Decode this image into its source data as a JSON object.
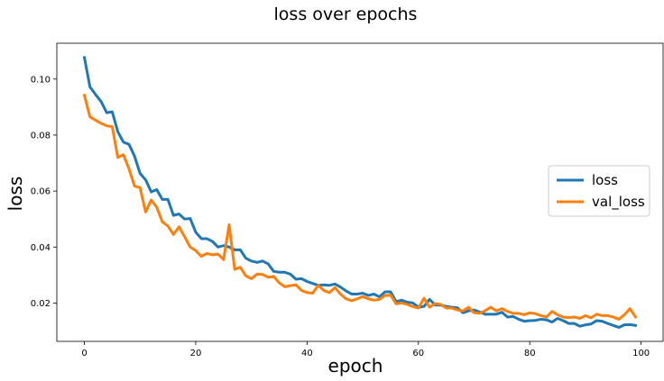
{
  "chart_data": {
    "type": "line",
    "title": "loss over epochs",
    "xlabel": "epoch",
    "ylabel": "loss",
    "xlim": [
      -4.95,
      103.95
    ],
    "ylim": [
      0.0063,
      0.1128
    ],
    "xticks": [
      0,
      20,
      40,
      60,
      80,
      100
    ],
    "yticks": [
      0.02,
      0.04,
      0.06,
      0.08,
      0.1
    ],
    "ytick_labels": [
      "0.02",
      "0.04",
      "0.06",
      "0.08",
      "0.10"
    ],
    "grid": false,
    "legend_position": "center-right",
    "x": [
      0,
      1,
      2,
      3,
      4,
      5,
      6,
      7,
      8,
      9,
      10,
      11,
      12,
      13,
      14,
      15,
      16,
      17,
      18,
      19,
      20,
      21,
      22,
      23,
      24,
      25,
      26,
      27,
      28,
      29,
      30,
      31,
      32,
      33,
      34,
      35,
      36,
      37,
      38,
      39,
      40,
      41,
      42,
      43,
      44,
      45,
      46,
      47,
      48,
      49,
      50,
      51,
      52,
      53,
      54,
      55,
      56,
      57,
      58,
      59,
      60,
      61,
      62,
      63,
      64,
      65,
      66,
      67,
      68,
      69,
      70,
      71,
      72,
      73,
      74,
      75,
      76,
      77,
      78,
      79,
      80,
      81,
      82,
      83,
      84,
      85,
      86,
      87,
      88,
      89,
      90,
      91,
      92,
      93,
      94,
      95,
      96,
      97,
      98,
      99
    ],
    "series": [
      {
        "name": "loss",
        "color": "#1f77b4",
        "values": [
          0.1077,
          0.0972,
          0.0945,
          0.092,
          0.088,
          0.0883,
          0.0812,
          0.0775,
          0.0767,
          0.0725,
          0.0663,
          0.064,
          0.0597,
          0.0605,
          0.057,
          0.057,
          0.0513,
          0.0518,
          0.05,
          0.0502,
          0.0453,
          0.043,
          0.043,
          0.042,
          0.04,
          0.0405,
          0.04,
          0.039,
          0.039,
          0.036,
          0.035,
          0.0345,
          0.035,
          0.034,
          0.0313,
          0.031,
          0.031,
          0.0303,
          0.0285,
          0.0287,
          0.0277,
          0.027,
          0.0263,
          0.0265,
          0.0263,
          0.0268,
          0.0257,
          0.0243,
          0.0232,
          0.0232,
          0.0235,
          0.0227,
          0.0232,
          0.0222,
          0.024,
          0.024,
          0.0205,
          0.021,
          0.0203,
          0.02,
          0.0185,
          0.0188,
          0.0213,
          0.0193,
          0.0192,
          0.0188,
          0.0185,
          0.0183,
          0.0165,
          0.0172,
          0.0175,
          0.0168,
          0.016,
          0.016,
          0.016,
          0.0167,
          0.015,
          0.0152,
          0.0142,
          0.0135,
          0.0137,
          0.0138,
          0.0142,
          0.014,
          0.0132,
          0.0145,
          0.0137,
          0.0127,
          0.0127,
          0.0117,
          0.0122,
          0.0125,
          0.0137,
          0.0135,
          0.0127,
          0.012,
          0.0113,
          0.0122,
          0.0123,
          0.012
        ]
      },
      {
        "name": "val_loss",
        "color": "#ff7f0e",
        "values": [
          0.0942,
          0.0865,
          0.0853,
          0.0842,
          0.0833,
          0.083,
          0.072,
          0.073,
          0.068,
          0.0618,
          0.0612,
          0.0525,
          0.0568,
          0.0542,
          0.049,
          0.0475,
          0.0445,
          0.0472,
          0.0437,
          0.04,
          0.0387,
          0.0367,
          0.0377,
          0.0372,
          0.0375,
          0.0355,
          0.048,
          0.032,
          0.0328,
          0.0297,
          0.0287,
          0.0303,
          0.0302,
          0.0292,
          0.0295,
          0.0272,
          0.0258,
          0.0262,
          0.0265,
          0.0245,
          0.0237,
          0.0235,
          0.0263,
          0.0245,
          0.0237,
          0.0255,
          0.0232,
          0.0215,
          0.0208,
          0.0215,
          0.0223,
          0.0215,
          0.021,
          0.0213,
          0.0227,
          0.0228,
          0.0197,
          0.02,
          0.0195,
          0.0187,
          0.0182,
          0.0217,
          0.0185,
          0.0198,
          0.0195,
          0.0182,
          0.0182,
          0.0175,
          0.0172,
          0.0185,
          0.0165,
          0.0163,
          0.0173,
          0.0185,
          0.0172,
          0.018,
          0.017,
          0.0163,
          0.0163,
          0.0158,
          0.0165,
          0.0162,
          0.0155,
          0.015,
          0.017,
          0.0158,
          0.015,
          0.0148,
          0.015,
          0.0145,
          0.0155,
          0.0147,
          0.016,
          0.0155,
          0.0155,
          0.015,
          0.0142,
          0.0158,
          0.018,
          0.015
        ]
      }
    ]
  }
}
